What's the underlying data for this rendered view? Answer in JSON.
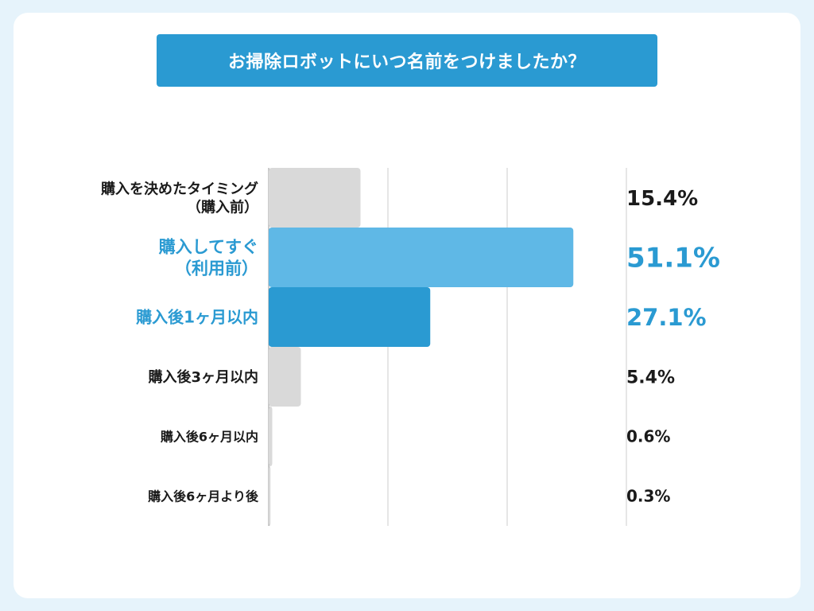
{
  "title": "お掃除ロボットにいつ名前をつけましたか？",
  "colors": {
    "background": "#e6f3fb",
    "card": "#ffffff",
    "title_bg": "#2a9ad2",
    "bar_gray": "#d9d9d9",
    "bar_light_blue": "#5fb8e6",
    "bar_blue": "#2a9ad2",
    "text_dark": "#1a1a1a",
    "text_blue": "#2a9ad2",
    "grid": "#cccccc"
  },
  "chart_data": {
    "type": "bar",
    "orientation": "horizontal",
    "xlim": [
      0,
      100
    ],
    "grid": true,
    "categories": [
      [
        "購入を決めたタイミング",
        "（購入前）"
      ],
      [
        "購入してすぐ",
        "（利用前）"
      ],
      [
        "購入後1ヶ月以内"
      ],
      [
        "購入後3ヶ月以内"
      ],
      [
        "購入後6ヶ月以内"
      ],
      [
        "購入後6ヶ月より後"
      ]
    ],
    "values": [
      15.4,
      51.1,
      27.1,
      5.4,
      0.6,
      0.3
    ],
    "value_labels": [
      "15.4%",
      "51.1%",
      "27.1%",
      "5.4%",
      "0.6%",
      "0.3%"
    ],
    "highlight": [
      false,
      true,
      true,
      false,
      false,
      false
    ]
  }
}
